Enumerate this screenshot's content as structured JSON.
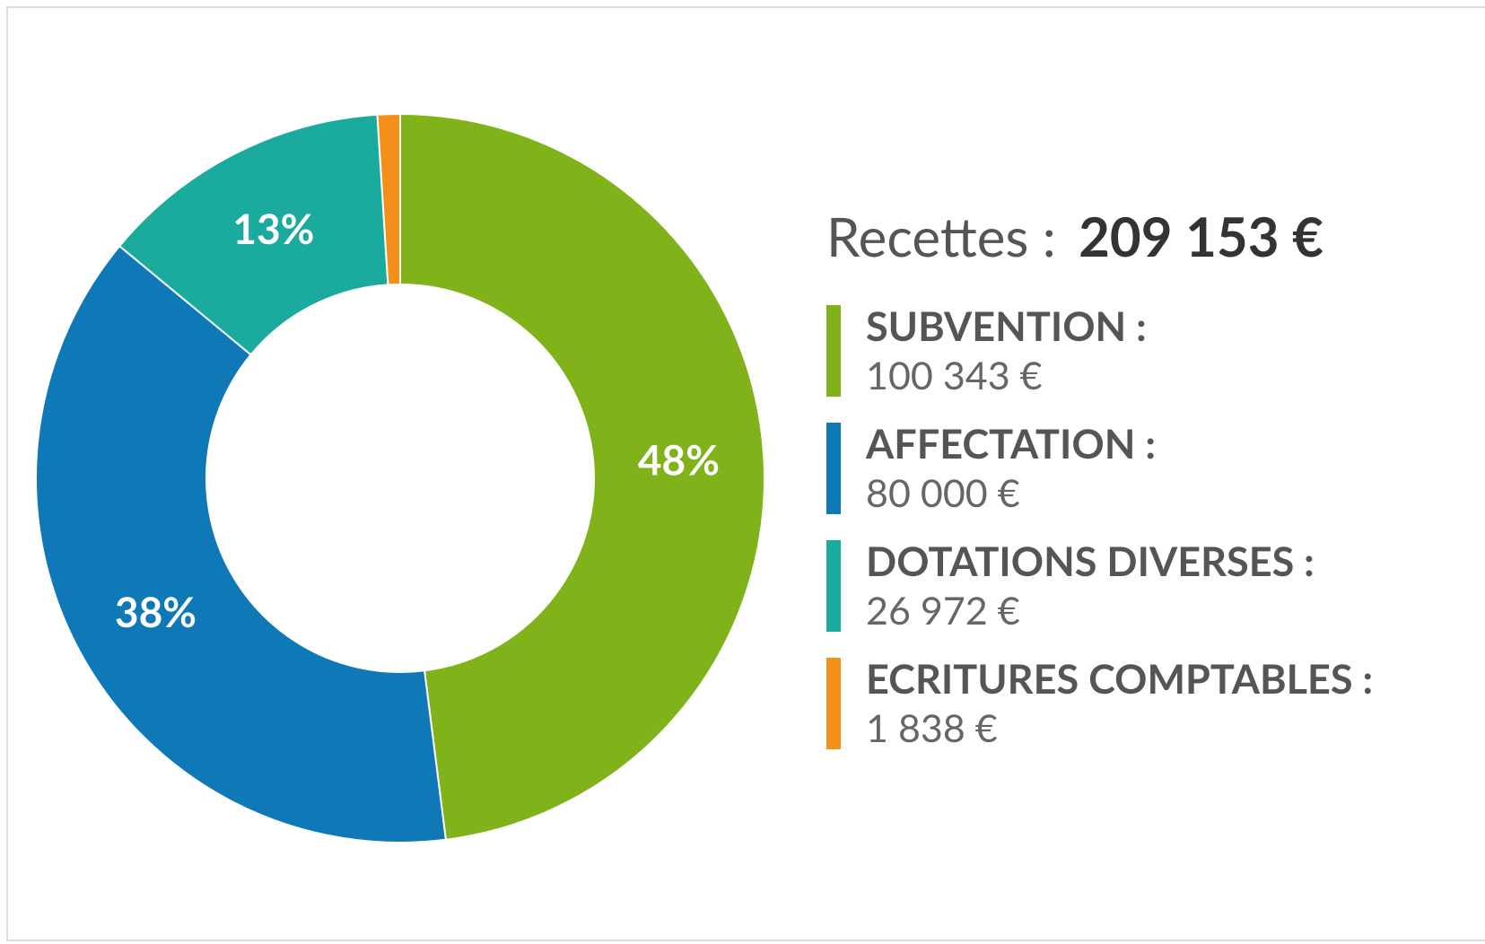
{
  "chart_data": {
    "type": "donut",
    "title": "Recettes :",
    "total": "209 153 €",
    "categories": [
      "SUBVENTION :",
      "AFFECTATION :",
      "DOTATIONS DIVERSES :",
      "ECRITURES COMPTABLES :"
    ],
    "legend_amounts": [
      "100 343 €",
      "80 000 €",
      "26 972 €",
      "1 838 €"
    ],
    "values": [
      48,
      38,
      13,
      1
    ],
    "value_labels": [
      "48%",
      "38%",
      "13%",
      null
    ],
    "colors": [
      "#80b21a",
      "#0f79b8",
      "#1aab9e",
      "#f39019"
    ]
  }
}
